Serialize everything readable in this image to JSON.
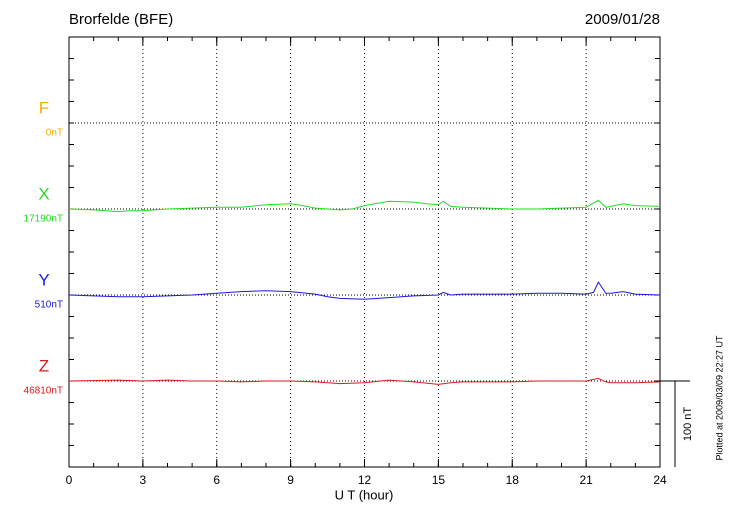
{
  "chart_data": {
    "type": "line",
    "title": "Brorfelde (BFE)",
    "date": "2009/01/28",
    "x_label": "U T (hour)",
    "plot_note": "Plotted at 2009/03/09 22:27 UT",
    "scale_bar": {
      "value": 100,
      "label": "100 nT"
    },
    "xlim": [
      0,
      24
    ],
    "xticks": [
      0,
      3,
      6,
      9,
      12,
      15,
      18,
      21,
      24
    ],
    "ylim": [
      -100,
      400
    ],
    "yticks": [
      -100,
      -75,
      -50,
      -25,
      0,
      25,
      50,
      75,
      100,
      125,
      150,
      175,
      200,
      225,
      250,
      275,
      300,
      325,
      350,
      375,
      400
    ],
    "grid": true,
    "series": [
      {
        "name": "F",
        "color": "#f0b000",
        "offset_label": "0nT"
      },
      {
        "name": "X",
        "color": "#22dd22",
        "offset_label": "17190nT",
        "x": [
          0,
          1,
          2,
          2.5,
          3,
          4,
          5,
          6,
          7,
          8,
          9,
          9.5,
          10,
          11,
          11.5,
          12,
          13,
          14,
          14.5,
          15,
          15.2,
          15.5,
          16,
          17,
          18,
          19,
          20,
          21,
          21.5,
          21.8,
          22,
          22.5,
          23,
          24
        ],
        "values": [
          0,
          -1,
          -3,
          -2,
          -2,
          0,
          1,
          2,
          2,
          5,
          6,
          4,
          1,
          -1,
          0,
          4,
          9,
          8,
          6,
          5,
          9,
          3,
          2,
          1,
          0,
          0,
          1,
          2,
          10,
          2,
          3,
          6,
          4,
          3
        ]
      },
      {
        "name": "Y",
        "color": "#1a1adf",
        "offset_label": "510nT",
        "x": [
          0,
          1,
          2,
          3,
          4,
          5,
          6,
          7,
          8,
          9,
          10,
          10.5,
          11,
          12,
          13,
          14,
          15,
          15.2,
          15.5,
          16,
          17,
          18,
          19,
          20,
          21,
          21.3,
          21.5,
          21.8,
          22,
          22.5,
          23,
          24
        ],
        "values": [
          0,
          -1,
          -2,
          -2,
          -1,
          0,
          2,
          4,
          5,
          4,
          1,
          -2,
          -4,
          -5,
          -3,
          -1,
          0,
          3,
          0,
          1,
          1,
          1,
          2,
          2,
          1,
          3,
          15,
          2,
          2,
          4,
          1,
          0
        ]
      },
      {
        "name": "Z",
        "color": "#dd1a1a",
        "offset_label": "46810nT",
        "x": [
          0,
          2,
          3,
          4,
          5,
          6,
          7,
          8,
          9,
          10,
          11,
          12,
          13,
          14,
          15,
          15.5,
          16,
          17,
          18,
          19,
          20,
          21,
          21.5,
          21.8,
          22,
          23,
          24
        ],
        "values": [
          0,
          1,
          0,
          1,
          0,
          0,
          -1,
          0,
          0,
          -1,
          -3,
          -2,
          1,
          -1,
          -4,
          -2,
          -1,
          -1,
          -1,
          0,
          0,
          0,
          3,
          -1,
          -2,
          -2,
          -1
        ]
      }
    ]
  }
}
